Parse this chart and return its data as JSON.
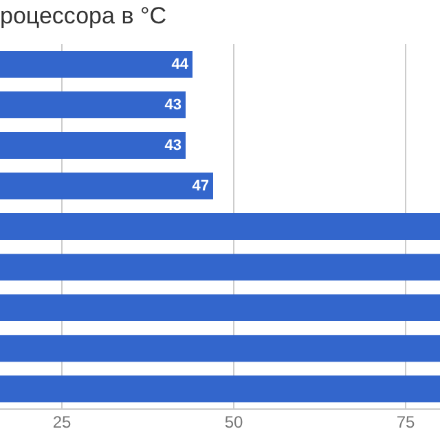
{
  "chart_data": {
    "type": "bar",
    "orientation": "horizontal",
    "title": "роцессора в °C",
    "categories": [
      null,
      null,
      null,
      null,
      null,
      null,
      null,
      null,
      null
    ],
    "values": [
      44,
      43,
      43,
      47,
      80,
      80,
      80,
      80,
      80
    ],
    "value_labels": [
      "44",
      "43",
      "43",
      "47",
      null,
      null,
      null,
      null,
      null
    ],
    "color": "#3366cc",
    "xlim": [
      16,
      80
    ],
    "xticks": [
      25,
      50,
      75
    ],
    "grid": "x",
    "legend": false
  }
}
